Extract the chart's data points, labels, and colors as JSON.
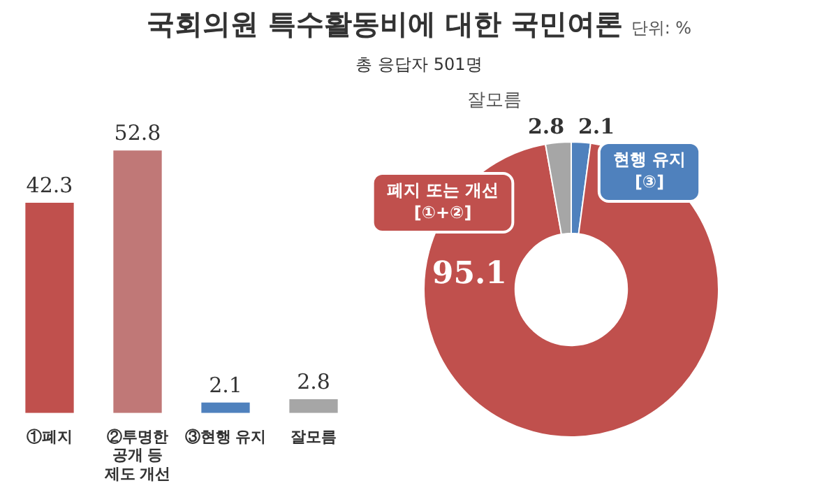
{
  "chart_data": [
    {
      "type": "bar",
      "title": "국회의원 특수활동비에 대한 국민여론",
      "subtitle": "총 응답자 501명",
      "annotations": [
        "단위: %"
      ],
      "categories": [
        "①폐지",
        "②투명한\n공개 등\n제도 개선",
        "③현행 유지",
        "잘모름"
      ],
      "values": [
        42.3,
        52.8,
        2.1,
        2.8
      ],
      "colors": [
        "#c0504d",
        "#c07877",
        "#4f81bd",
        "#a6a6a6"
      ],
      "data_labels": true
    },
    {
      "type": "donut",
      "categories": [
        "현행 유지\n[③]",
        "폐지 또는 개선\n[①+②]",
        "잘모름"
      ],
      "values": [
        2.1,
        95.1,
        2.8
      ],
      "colors": [
        "#4f81bd",
        "#c0504d",
        "#a6a6a6"
      ],
      "data_labels": true
    }
  ]
}
